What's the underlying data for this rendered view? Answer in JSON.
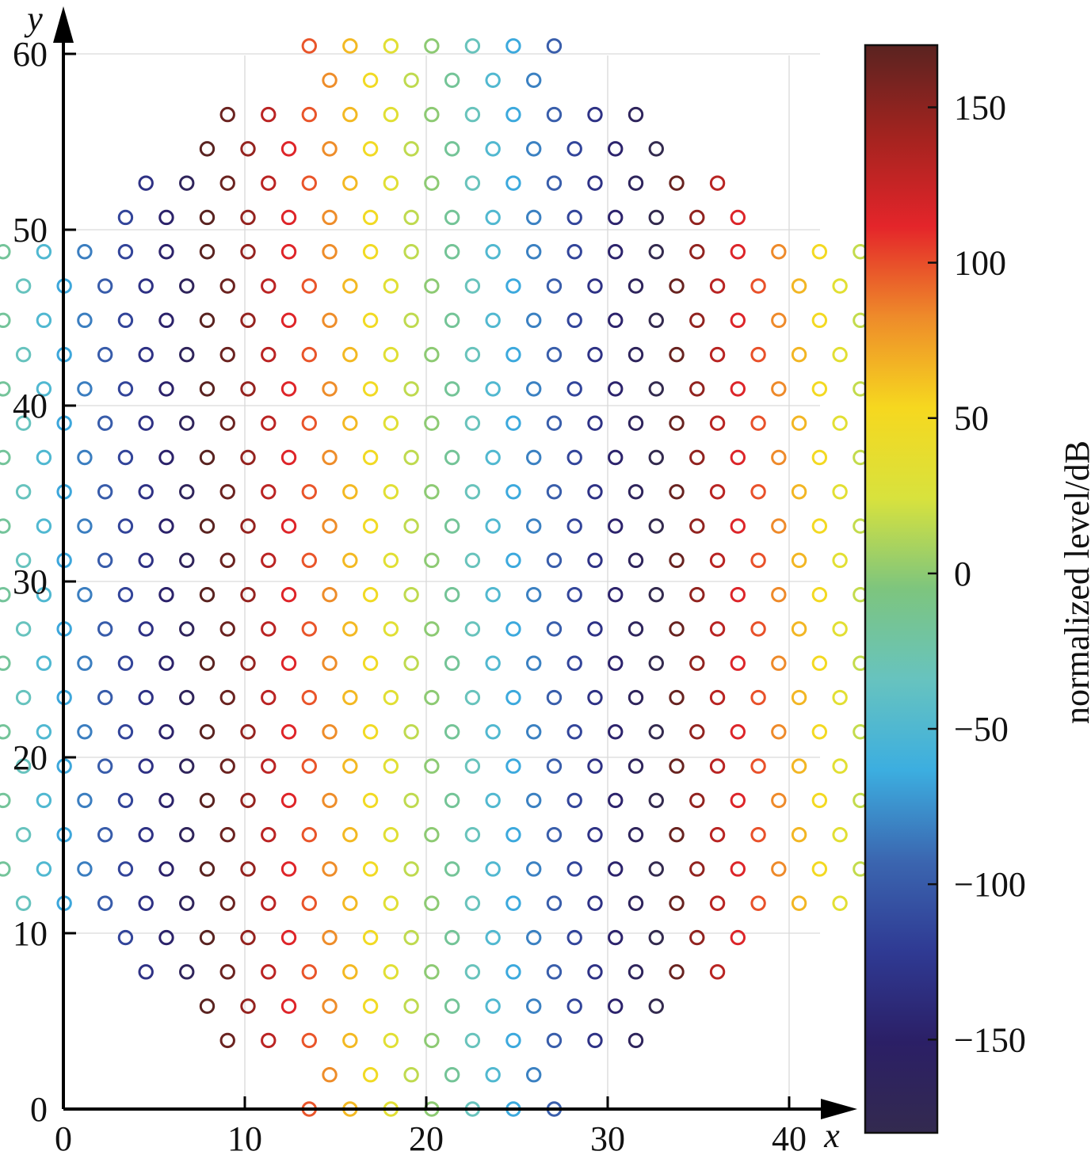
{
  "chart_data": {
    "type": "scatter",
    "title": "",
    "xlabel": "x",
    "ylabel": "y",
    "xlim": [
      0,
      42
    ],
    "ylim": [
      0,
      62
    ],
    "grid": true,
    "marker": "circle-outline",
    "xticks": [
      "0",
      "10",
      "20",
      "30",
      "40"
    ],
    "yticks": [
      "0",
      "10",
      "20",
      "30",
      "40",
      "50",
      "60"
    ],
    "array_geometry": {
      "hex_pitch_x": 2.25,
      "row_spacing_y": 1.95,
      "center_x": 20.3,
      "rows": [
        {
          "y": 0.0,
          "n": 7
        },
        {
          "y": 1.95,
          "n": 6
        },
        {
          "y": 3.9,
          "n": 11
        },
        {
          "y": 5.85,
          "n": 12
        },
        {
          "y": 7.8,
          "n": 15
        },
        {
          "y": 9.75,
          "n": 16
        },
        {
          "y": 11.7,
          "n": 21
        },
        {
          "y": 13.65,
          "n": 22
        },
        {
          "y": 15.6,
          "n": 21
        },
        {
          "y": 17.55,
          "n": 22
        },
        {
          "y": 19.5,
          "n": 21
        },
        {
          "y": 21.45,
          "n": 22
        },
        {
          "y": 23.4,
          "n": 21
        },
        {
          "y": 25.35,
          "n": 22
        },
        {
          "y": 27.3,
          "n": 21
        },
        {
          "y": 29.25,
          "n": 22
        },
        {
          "y": 31.2,
          "n": 21
        },
        {
          "y": 33.15,
          "n": 22
        },
        {
          "y": 35.1,
          "n": 21
        },
        {
          "y": 37.05,
          "n": 22
        },
        {
          "y": 39.0,
          "n": 21
        },
        {
          "y": 40.95,
          "n": 22
        },
        {
          "y": 42.9,
          "n": 21
        },
        {
          "y": 44.85,
          "n": 22
        },
        {
          "y": 46.8,
          "n": 21
        },
        {
          "y": 48.75,
          "n": 22
        },
        {
          "y": 50.7,
          "n": 16
        },
        {
          "y": 52.65,
          "n": 15
        },
        {
          "y": 54.6,
          "n": 12
        },
        {
          "y": 56.55,
          "n": 11
        },
        {
          "y": 58.5,
          "n": 6
        },
        {
          "y": 60.45,
          "n": 7
        }
      ],
      "color_value_model": {
        "reference_x": 20.3,
        "slope_db_per_unit_x": -14.5,
        "wrap_period_db": 360,
        "wrap_range": [
          -180,
          180
        ]
      }
    },
    "colorbar": {
      "label": "normalized level/dB",
      "range": [
        -180,
        170
      ],
      "ticks": [
        "150",
        "100",
        "50",
        "0",
        "−50",
        "−100",
        "−150"
      ],
      "tick_values": [
        150,
        100,
        50,
        0,
        -50,
        -100,
        -150
      ],
      "colormap": "jet-like",
      "color_stops": [
        "#332a4f",
        "#2b1f66",
        "#2f3a93",
        "#3b66b0",
        "#3caee0",
        "#67c3bf",
        "#7dc57e",
        "#d8e23d",
        "#f6d81f",
        "#ee8b2a",
        "#e4252a",
        "#a3231f",
        "#5a2320"
      ]
    }
  }
}
